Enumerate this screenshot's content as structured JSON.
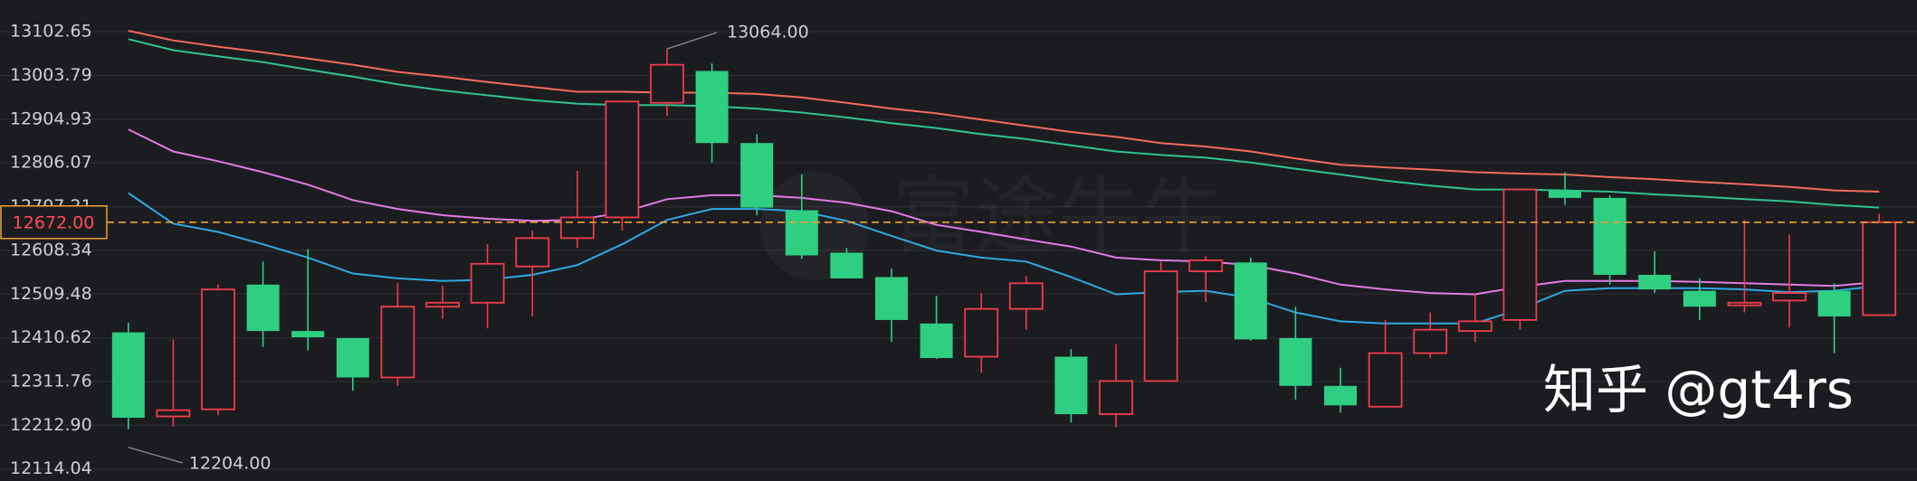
{
  "chart_data": {
    "type": "candlestick",
    "ylim": [
      12086.9,
      13174.45
    ],
    "yticks": [
      13102.65,
      13003.79,
      12904.93,
      12806.07,
      12707.21,
      12608.34,
      12509.48,
      12410.62,
      12311.76,
      {
        "value": 12212.9,
        "label": "12212.90"
      },
      12114.04
    ],
    "grid": true,
    "up_color": "#f03c4b",
    "down_color": "#2fcf82",
    "open": [
      12423,
      12233,
      12249,
      12531,
      12426,
      12410,
      12321,
      12481,
      12490,
      12572,
      12636,
      12683,
      12942,
      13014,
      12851,
      12699,
      12603,
      12548,
      12443,
      12368,
      12476,
      12368,
      12238,
      12313,
      12561,
      12581,
      12410,
      12302,
      12255,
      12376,
      12426,
      12451,
      12744,
      12727,
      12553,
      12517,
      12484,
      12495,
      12517,
      12462
    ],
    "high": [
      12445,
      12407,
      12531,
      12583,
      12611,
      12410,
      12534,
      12528,
      12622,
      12653,
      12788,
      12945,
      13064,
      13031,
      12871,
      12780,
      12614,
      12567,
      12506,
      12512,
      12550,
      12385,
      12396,
      12583,
      12595,
      12592,
      12481,
      12343,
      12451,
      12468,
      12512,
      12746,
      12785,
      12733,
      12606,
      12545,
      12677,
      12644,
      12534,
      12691
    ],
    "low": [
      12204,
      12210,
      12236,
      12390,
      12382,
      12291,
      12302,
      12454,
      12432,
      12459,
      12614,
      12653,
      12912,
      12807,
      12688,
      12589,
      12545,
      12401,
      12363,
      12332,
      12429,
      12219,
      12208,
      12313,
      12492,
      12404,
      12271,
      12241,
      12255,
      12365,
      12401,
      12429,
      12711,
      12531,
      12512,
      12451,
      12468,
      12434,
      12376,
      12462
    ],
    "close": [
      12230,
      12247,
      12520,
      12426,
      12412,
      12321,
      12481,
      12490,
      12578,
      12636,
      12683,
      12945,
      13028,
      12851,
      12705,
      12597,
      12545,
      12451,
      12365,
      12476,
      12534,
      12238,
      12313,
      12561,
      12586,
      12407,
      12302,
      12258,
      12376,
      12429,
      12448,
      12746,
      12727,
      12553,
      12520,
      12481,
      12490,
      12512,
      12459,
      12672
    ],
    "lines": [
      {
        "color": "#f26a5d",
        "values": [
          13105,
          13083,
          13069,
          13056,
          13042,
          13028,
          13012,
          13001,
          12989,
          12978,
          12967,
          12967,
          12965,
          12965,
          12962,
          12954,
          12942,
          12929,
          12918,
          12904,
          12890,
          12876,
          12865,
          12851,
          12843,
          12832,
          12816,
          12802,
          12796,
          12791,
          12785,
          12782,
          12780,
          12774,
          12769,
          12763,
          12758,
          12752,
          12744,
          12741
        ]
      },
      {
        "color": "#2fc48b",
        "values": [
          13086,
          13061,
          13047,
          13034,
          13017,
          13001,
          12984,
          12970,
          12959,
          12948,
          12940,
          12937,
          12937,
          12934,
          12929,
          12920,
          12909,
          12896,
          12885,
          12871,
          12860,
          12846,
          12832,
          12824,
          12818,
          12807,
          12793,
          12780,
          12766,
          12755,
          12746,
          12746,
          12744,
          12741,
          12735,
          12730,
          12724,
          12719,
          12711,
          12705
        ]
      },
      {
        "color": "#e27be2",
        "values": [
          12882,
          12832,
          12810,
          12785,
          12757,
          12722,
          12702,
          12688,
          12680,
          12675,
          12677,
          12694,
          12724,
          12733,
          12733,
          12727,
          12716,
          12697,
          12666,
          12650,
          12633,
          12617,
          12592,
          12586,
          12583,
          12575,
          12556,
          12531,
          12520,
          12512,
          12509,
          12526,
          12539,
          12539,
          12539,
          12537,
          12534,
          12531,
          12528,
          12537
        ]
      },
      {
        "color": "#2fa9e2",
        "values": [
          12738,
          12669,
          12650,
          12622,
          12592,
          12556,
          12545,
          12539,
          12542,
          12553,
          12575,
          12622,
          12677,
          12702,
          12702,
          12697,
          12675,
          12641,
          12608,
          12592,
          12583,
          12548,
          12509,
          12514,
          12517,
          12501,
          12468,
          12448,
          12443,
          12443,
          12443,
          12476,
          12517,
          12523,
          12523,
          12523,
          12520,
          12514,
          12517,
          12528
        ]
      }
    ],
    "last_price": {
      "value": 12672,
      "label": "12672.00"
    },
    "high_label": {
      "value": 13064,
      "label": "13064.00"
    },
    "low_label": {
      "value": 12204,
      "label": "12204.00"
    },
    "watermark": "富途牛牛",
    "credit": "知乎 @gt4rs"
  }
}
